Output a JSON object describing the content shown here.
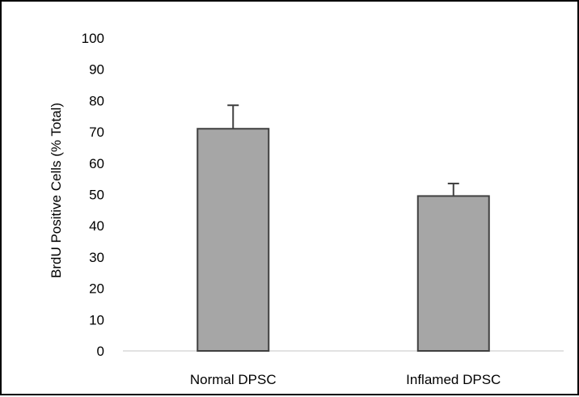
{
  "chart_data": {
    "type": "bar",
    "title": "",
    "xlabel": "",
    "ylabel": "BrdU Positive Cells (% Total)",
    "categories": [
      "Normal DPSC",
      "Inflamed DPSC"
    ],
    "values": [
      71,
      49.5
    ],
    "error_plus": [
      7.5,
      4
    ],
    "ylim": [
      0,
      100
    ],
    "yticks": [
      0,
      10,
      20,
      30,
      40,
      50,
      60,
      70,
      80,
      90,
      100
    ],
    "grid": false,
    "legend": "none",
    "bar_color": "#a6a6a6",
    "bar_edge_color": "#404040",
    "axis_color": "#d9d9d9"
  }
}
